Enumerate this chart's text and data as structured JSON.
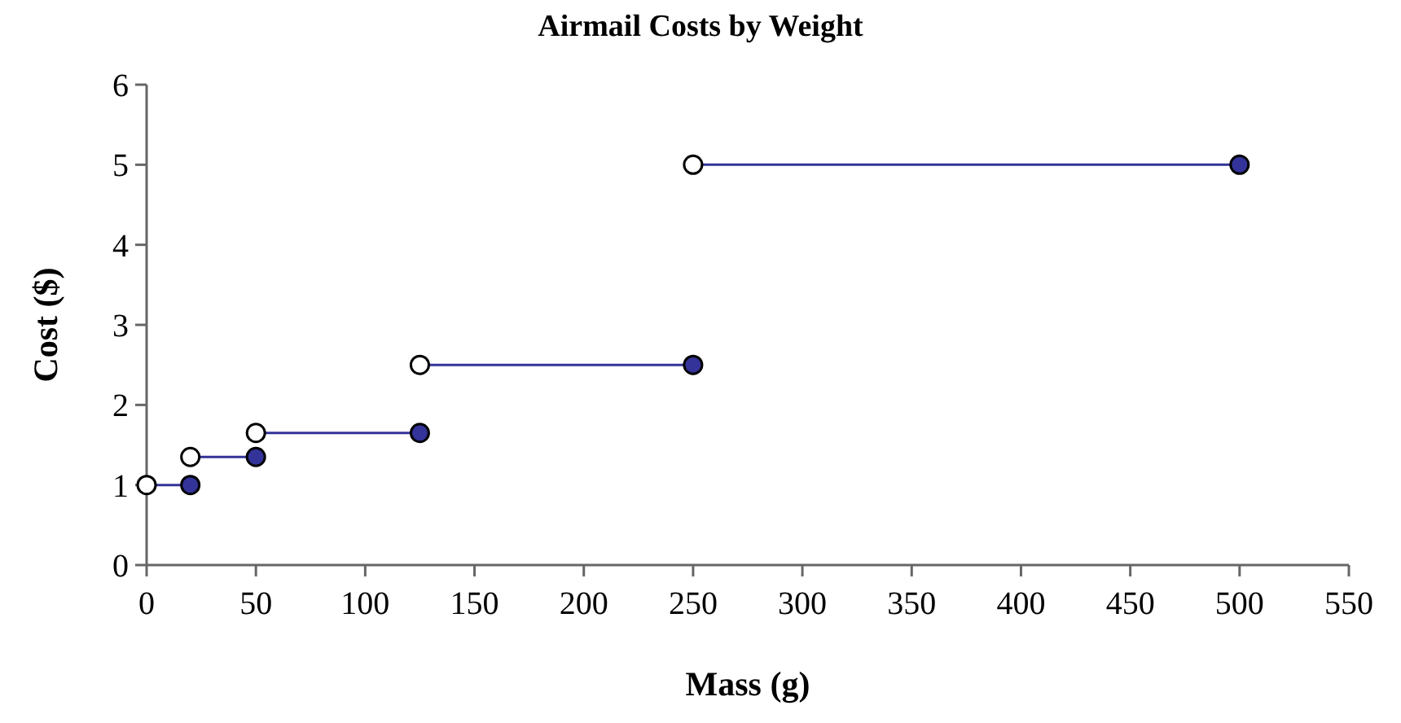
{
  "chart_data": {
    "type": "line",
    "title": "Airmail Costs by Weight",
    "xlabel": "Mass (g)",
    "ylabel": "Cost ($)",
    "xlim": [
      0,
      550
    ],
    "xticks": [
      0,
      50,
      100,
      150,
      200,
      250,
      300,
      350,
      400,
      450,
      500,
      550
    ],
    "ylim": [
      0,
      6
    ],
    "yticks": [
      0,
      1,
      2,
      3,
      4,
      5,
      6
    ],
    "grid": false,
    "marker": "none",
    "line_style": "solid",
    "series": [
      {
        "color": "#333399",
        "x": [
          0,
          20
        ],
        "values": [
          1,
          1
        ]
      },
      {
        "color": "#333399",
        "x": [
          20,
          50
        ],
        "values": [
          1.35,
          1.35
        ]
      },
      {
        "color": "#333399",
        "x": [
          50,
          125
        ],
        "values": [
          1.65,
          1.65
        ]
      },
      {
        "color": "#333399",
        "x": [
          125,
          250
        ],
        "values": [
          2.5,
          2.5
        ]
      },
      {
        "color": "#333399",
        "x": [
          250,
          500
        ],
        "values": [
          5,
          5
        ]
      },
      {
        "type": "scatter",
        "color": "#ffffff",
        "marker": "circle",
        "x": [
          0,
          20,
          50,
          125,
          250
        ],
        "values": [
          1,
          1.35,
          1.65,
          2.5,
          5
        ]
      },
      {
        "type": "scatter",
        "color": "#333399",
        "marker": "circle",
        "x": [
          20,
          50,
          125,
          250,
          500
        ],
        "values": [
          1,
          1.35,
          1.65,
          2.5,
          5
        ]
      }
    ]
  }
}
